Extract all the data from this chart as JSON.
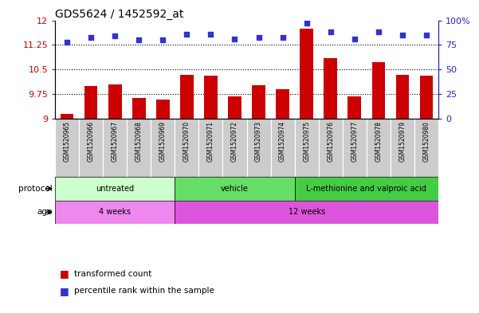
{
  "title": "GDS5624 / 1452592_at",
  "samples": [
    "GSM1520965",
    "GSM1520966",
    "GSM1520967",
    "GSM1520968",
    "GSM1520969",
    "GSM1520970",
    "GSM1520971",
    "GSM1520972",
    "GSM1520973",
    "GSM1520974",
    "GSM1520975",
    "GSM1520976",
    "GSM1520977",
    "GSM1520978",
    "GSM1520979",
    "GSM1520980"
  ],
  "bar_values": [
    9.15,
    10.0,
    10.05,
    9.65,
    9.6,
    10.35,
    10.32,
    9.68,
    10.02,
    9.9,
    11.75,
    10.85,
    9.68,
    10.72,
    10.35,
    10.32
  ],
  "dot_values": [
    78,
    83,
    84,
    80,
    80,
    86,
    86,
    81,
    83,
    83,
    97,
    88,
    81,
    88,
    85,
    85
  ],
  "ylim_left": [
    9,
    12
  ],
  "ylim_right": [
    0,
    100
  ],
  "yticks_left": [
    9,
    9.75,
    10.5,
    11.25,
    12
  ],
  "ytick_labels_left": [
    "9",
    "9.75",
    "10.5",
    "11.25",
    "12"
  ],
  "yticks_right": [
    0,
    25,
    50,
    75,
    100
  ],
  "ytick_labels_right": [
    "0",
    "25",
    "50",
    "75",
    "100%"
  ],
  "hlines": [
    9.75,
    10.5,
    11.25
  ],
  "bar_color": "#cc0000",
  "dot_color": "#3333cc",
  "bar_width": 0.55,
  "protocol_groups": [
    {
      "label": "untreated",
      "start": 0,
      "end": 4,
      "color": "#ccffcc"
    },
    {
      "label": "vehicle",
      "start": 5,
      "end": 9,
      "color": "#66dd66"
    },
    {
      "label": "L-methionine and valproic acid",
      "start": 10,
      "end": 15,
      "color": "#44cc44"
    }
  ],
  "age_groups": [
    {
      "label": "4 weeks",
      "start": 0,
      "end": 4,
      "color": "#ee88ee"
    },
    {
      "label": "12 weeks",
      "start": 5,
      "end": 15,
      "color": "#dd55dd"
    }
  ],
  "protocol_label": "protocol",
  "age_label": "age",
  "legend_bar_label": "transformed count",
  "legend_dot_label": "percentile rank within the sample",
  "left_axis_color": "#cc0000",
  "right_axis_color": "#2222cc",
  "bg_color": "#ffffff",
  "plot_bg_color": "#ffffff",
  "tick_area_color": "#cccccc"
}
